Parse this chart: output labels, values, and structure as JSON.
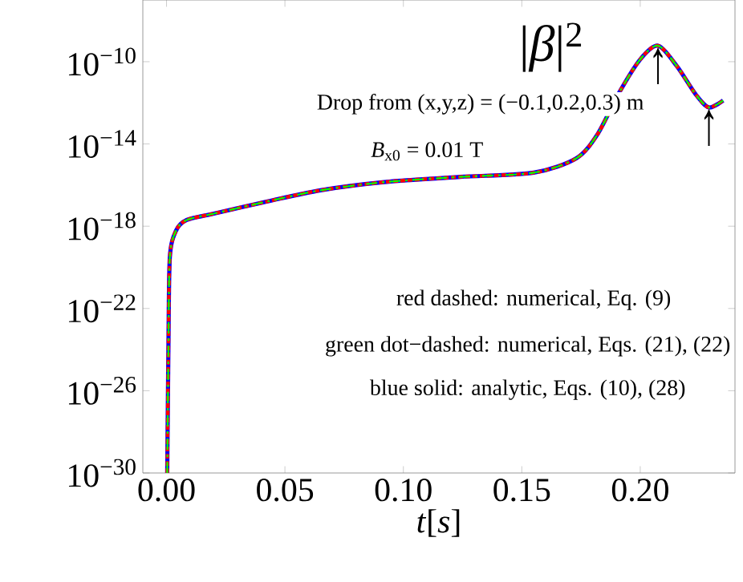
{
  "chart_data": {
    "type": "line",
    "title": "|*β*|$^{2}$",
    "xlabel": "*t*[*s*]",
    "annotations": [
      "Drop from (x,y,z) = (−0.1,0.2,0.3) m",
      "*B*$_{x0}$ = 0.01 T",
      "red dashed: numerical, Eq. (9)",
      "green dot−dashed: numerical, Eqs. (21), (22)",
      "blue solid: analytic, Eqs. (10), (28)",
      {
        "text": "↑",
        "x": 0.2075,
        "y": 6e-10
      },
      {
        "text": "↑",
        "x": 0.229,
        "y": 6e-13
      }
    ],
    "x": [
      0.0003,
      0.0008,
      0.0014,
      0.004,
      0.0085,
      0.0196,
      0.0426,
      0.065,
      0.092,
      0.124,
      0.155,
      0.173,
      0.182,
      0.191,
      0.2,
      0.2075,
      0.2155,
      0.2235,
      0.229,
      0.235
    ],
    "series": [
      {
        "color": "#0000ff",
        "line_style": "solid",
        "values": [
          1e-30,
          1e-24,
          3e-20,
          6e-19,
          2e-18,
          4e-18,
          1.6e-17,
          5.6e-17,
          1.4e-16,
          2.5e-16,
          4e-16,
          2e-15,
          3e-14,
          3e-12,
          1.3e-10,
          6e-10,
          6e-11,
          2.5e-12,
          6e-13,
          1.3e-12
        ]
      },
      {
        "color": "#ff0000",
        "line_style": "dashed",
        "values": [
          1e-30,
          1e-24,
          3e-20,
          6e-19,
          2e-18,
          4e-18,
          1.6e-17,
          5.6e-17,
          1.4e-16,
          2.5e-16,
          4e-16,
          2e-15,
          3e-14,
          3e-12,
          1.3e-10,
          6e-10,
          6e-11,
          2.5e-12,
          6e-13,
          1.3e-12
        ]
      },
      {
        "color": "#00ff00",
        "line_style": "dotted",
        "values": [
          1e-30,
          1e-24,
          3e-20,
          6e-19,
          2e-18,
          4e-18,
          1.6e-17,
          5.6e-17,
          1.4e-16,
          2.5e-16,
          4e-16,
          2e-15,
          3e-14,
          3e-12,
          1.3e-10,
          6e-10,
          6e-11,
          2.5e-12,
          6e-13,
          1.3e-12
        ]
      }
    ],
    "log": "y",
    "grid": false,
    "xlim": [
      -0.01,
      0.24
    ],
    "ylim": [
      1e-30,
      1e-07
    ],
    "xticks": [
      {
        "value": 0,
        "label": "0.00"
      },
      {
        "value": 0.05,
        "label": "0.05"
      },
      {
        "value": 0.1,
        "label": "0.10"
      },
      {
        "value": 0.15,
        "label": "0.15"
      },
      {
        "value": 0.2,
        "label": "0.20"
      }
    ],
    "yticks": [
      {
        "value": 1e-30,
        "label": "10$^{−30}$"
      },
      {
        "value": 1e-26,
        "label": "10$^{−26}$"
      },
      {
        "value": 1e-22,
        "label": "10$^{−22}$"
      },
      {
        "value": 1e-18,
        "label": "10$^{−18}$"
      },
      {
        "value": 1e-14,
        "label": "10$^{−14}$"
      },
      {
        "value": 1e-10,
        "label": "10$^{−10}$"
      }
    ]
  }
}
